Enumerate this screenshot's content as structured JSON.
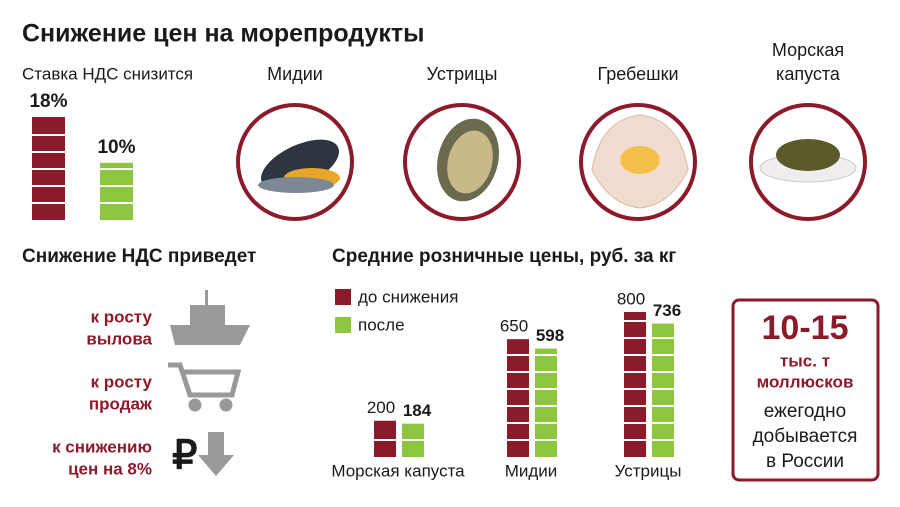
{
  "title": "Снижение цен на морепродукты",
  "products": [
    {
      "label": [
        "Мидии"
      ]
    },
    {
      "label": [
        "Устрицы"
      ]
    },
    {
      "label": [
        "Гребешки"
      ]
    },
    {
      "label": [
        "Морская",
        "капуста"
      ]
    }
  ],
  "effects_title": "Снижение НДС приведет",
  "effects": [
    {
      "lines": [
        "к росту",
        "вылова"
      ]
    },
    {
      "lines": [
        "к росту",
        "продаж"
      ]
    },
    {
      "lines": [
        "к снижению",
        "цен на 8%"
      ]
    }
  ],
  "callout": {
    "number": "10-15",
    "unit_lines": [
      "тыс. т",
      "моллюсков"
    ],
    "text_lines": [
      "ежегодно",
      "добывается",
      "в России"
    ]
  },
  "chart_data": [
    {
      "type": "bar",
      "title": "Ставка НДС снизится",
      "categories": [
        null,
        null
      ],
      "values": [
        18,
        10
      ],
      "value_labels": [
        "18%",
        "10%"
      ],
      "colors": [
        "#8b1a2b",
        "#8dc63f"
      ]
    },
    {
      "type": "grouped-bar",
      "title": "Средние розничные цены, руб. за кг",
      "categories": [
        "Морская капуста",
        "Мидии",
        "Устрицы"
      ],
      "series": [
        {
          "name": "до снижения",
          "color": "#8b1a2b",
          "values": [
            200,
            650,
            800
          ]
        },
        {
          "name": "после",
          "color": "#8dc63f",
          "values": [
            184,
            598,
            736
          ]
        }
      ]
    }
  ]
}
